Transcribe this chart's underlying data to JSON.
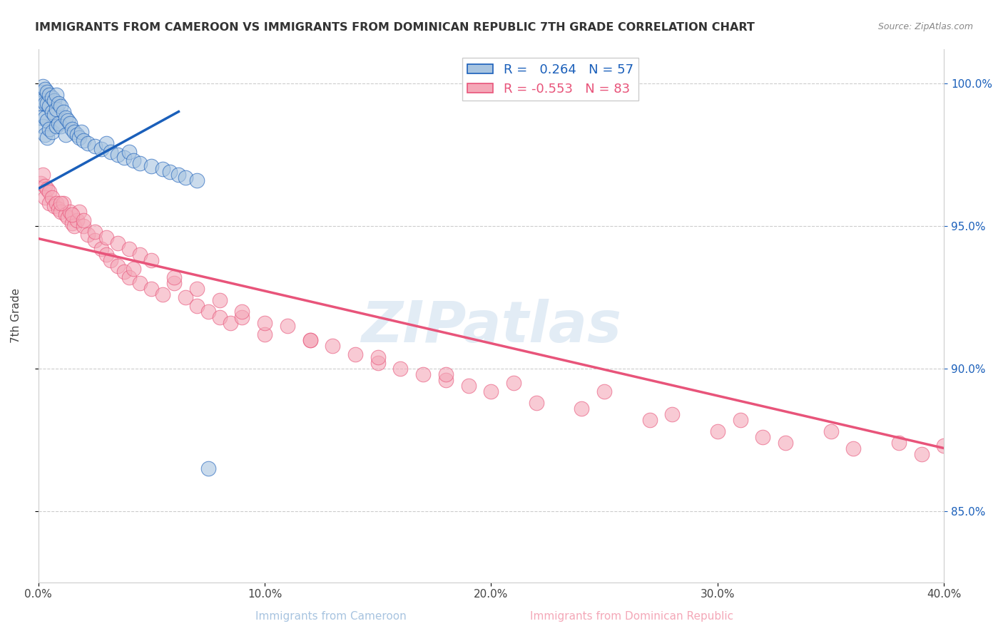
{
  "title": "IMMIGRANTS FROM CAMEROON VS IMMIGRANTS FROM DOMINICAN REPUBLIC 7TH GRADE CORRELATION CHART",
  "source": "Source: ZipAtlas.com",
  "xlabel_left": "Immigrants from Cameroon",
  "xlabel_right": "Immigrants from Dominican Republic",
  "ylabel": "7th Grade",
  "xmin": 0.0,
  "xmax": 0.4,
  "ymin": 0.825,
  "ymax": 1.012,
  "blue_R": 0.264,
  "blue_N": 57,
  "pink_R": -0.553,
  "pink_N": 83,
  "blue_color": "#a8c4e0",
  "pink_color": "#f4a8b8",
  "blue_line_color": "#1a5fba",
  "pink_line_color": "#e8547a",
  "watermark": "ZIPatlas",
  "blue_scatter_x": [
    0.001,
    0.001,
    0.001,
    0.002,
    0.002,
    0.002,
    0.003,
    0.003,
    0.003,
    0.003,
    0.004,
    0.004,
    0.004,
    0.004,
    0.005,
    0.005,
    0.005,
    0.006,
    0.006,
    0.006,
    0.007,
    0.007,
    0.008,
    0.008,
    0.008,
    0.009,
    0.009,
    0.01,
    0.01,
    0.011,
    0.012,
    0.012,
    0.013,
    0.014,
    0.015,
    0.016,
    0.017,
    0.018,
    0.019,
    0.02,
    0.022,
    0.025,
    0.028,
    0.03,
    0.032,
    0.035,
    0.038,
    0.04,
    0.042,
    0.045,
    0.05,
    0.055,
    0.058,
    0.062,
    0.065,
    0.07,
    0.075
  ],
  "blue_scatter_y": [
    0.997,
    0.993,
    0.988,
    0.999,
    0.994,
    0.985,
    0.998,
    0.993,
    0.988,
    0.982,
    0.997,
    0.993,
    0.987,
    0.981,
    0.996,
    0.992,
    0.984,
    0.995,
    0.99,
    0.983,
    0.994,
    0.989,
    0.996,
    0.991,
    0.985,
    0.993,
    0.986,
    0.992,
    0.985,
    0.99,
    0.988,
    0.982,
    0.987,
    0.986,
    0.984,
    0.983,
    0.982,
    0.981,
    0.983,
    0.98,
    0.979,
    0.978,
    0.977,
    0.979,
    0.976,
    0.975,
    0.974,
    0.976,
    0.973,
    0.972,
    0.971,
    0.97,
    0.969,
    0.968,
    0.967,
    0.966,
    0.865
  ],
  "pink_scatter_x": [
    0.001,
    0.002,
    0.003,
    0.003,
    0.004,
    0.005,
    0.005,
    0.006,
    0.007,
    0.008,
    0.009,
    0.01,
    0.011,
    0.012,
    0.013,
    0.014,
    0.015,
    0.016,
    0.017,
    0.018,
    0.02,
    0.022,
    0.025,
    0.028,
    0.03,
    0.032,
    0.035,
    0.038,
    0.04,
    0.042,
    0.045,
    0.05,
    0.055,
    0.06,
    0.065,
    0.07,
    0.075,
    0.08,
    0.085,
    0.09,
    0.1,
    0.11,
    0.12,
    0.13,
    0.14,
    0.15,
    0.16,
    0.17,
    0.18,
    0.19,
    0.2,
    0.21,
    0.22,
    0.24,
    0.25,
    0.27,
    0.28,
    0.3,
    0.31,
    0.32,
    0.33,
    0.35,
    0.36,
    0.38,
    0.39,
    0.4,
    0.01,
    0.015,
    0.02,
    0.025,
    0.03,
    0.035,
    0.04,
    0.045,
    0.05,
    0.06,
    0.07,
    0.08,
    0.09,
    0.1,
    0.12,
    0.15,
    0.18
  ],
  "pink_scatter_y": [
    0.965,
    0.968,
    0.964,
    0.96,
    0.963,
    0.962,
    0.958,
    0.96,
    0.957,
    0.958,
    0.956,
    0.955,
    0.958,
    0.954,
    0.953,
    0.955,
    0.951,
    0.95,
    0.952,
    0.955,
    0.95,
    0.947,
    0.945,
    0.942,
    0.94,
    0.938,
    0.936,
    0.934,
    0.932,
    0.935,
    0.93,
    0.928,
    0.926,
    0.93,
    0.925,
    0.922,
    0.92,
    0.918,
    0.916,
    0.918,
    0.912,
    0.915,
    0.91,
    0.908,
    0.905,
    0.902,
    0.9,
    0.898,
    0.896,
    0.894,
    0.892,
    0.895,
    0.888,
    0.886,
    0.892,
    0.882,
    0.884,
    0.878,
    0.882,
    0.876,
    0.874,
    0.878,
    0.872,
    0.874,
    0.87,
    0.873,
    0.958,
    0.954,
    0.952,
    0.948,
    0.946,
    0.944,
    0.942,
    0.94,
    0.938,
    0.932,
    0.928,
    0.924,
    0.92,
    0.916,
    0.91,
    0.904,
    0.898
  ],
  "blue_line_x": [
    0.0,
    0.062
  ],
  "blue_line_y": [
    0.963,
    0.99
  ],
  "pink_line_x": [
    0.0,
    0.4
  ],
  "pink_line_y": [
    0.9455,
    0.872
  ],
  "ytick_vals": [
    0.85,
    0.9,
    0.95,
    1.0
  ],
  "ytick_labels_right": [
    "85.0%",
    "90.0%",
    "95.0%",
    "100.0%"
  ],
  "xticks": [
    0.0,
    0.1,
    0.2,
    0.3,
    0.4
  ],
  "xtick_labels": [
    "0.0%",
    "10.0%",
    "20.0%",
    "30.0%",
    "40.0%"
  ],
  "title_fontsize": 11.5,
  "source_fontsize": 9,
  "tick_fontsize": 11,
  "legend_fontsize": 13
}
